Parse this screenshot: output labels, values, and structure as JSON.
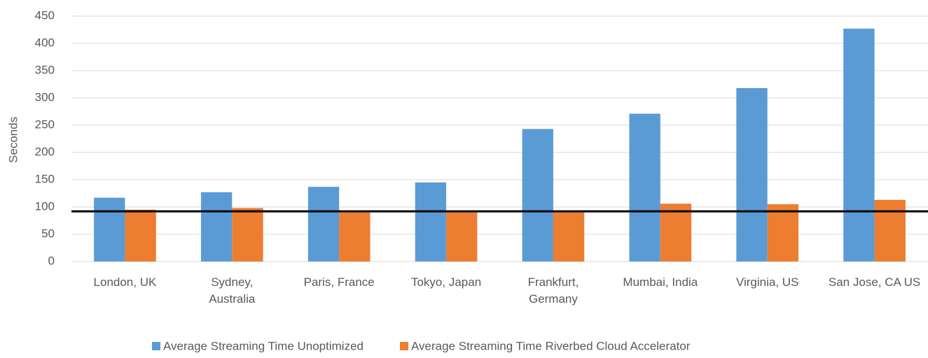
{
  "chart_data": {
    "type": "bar",
    "ylabel": "Seconds",
    "categories": [
      "London, UK",
      "Sydney,\nAustralia",
      "Paris, France",
      "Tokyo, Japan",
      "Frankfurt,\nGermany",
      "Mumbai, India",
      "Virginia, US",
      "San Jose, CA US"
    ],
    "series": [
      {
        "name": "Average Streaming Time Unoptimized",
        "color": "#5b9bd5",
        "values": [
          117,
          127,
          137,
          145,
          243,
          271,
          318,
          427
        ]
      },
      {
        "name": "Average Streaming Time Riverbed Cloud Accelerator",
        "color": "#ed7d31",
        "values": [
          95,
          98,
          90,
          90,
          90,
          106,
          105,
          113
        ]
      }
    ],
    "reference_line": 92,
    "ylim": [
      0,
      450
    ],
    "yticks": [
      0,
      50,
      100,
      150,
      200,
      250,
      300,
      350,
      400,
      450
    ],
    "grid": true,
    "legend": "bottom"
  }
}
